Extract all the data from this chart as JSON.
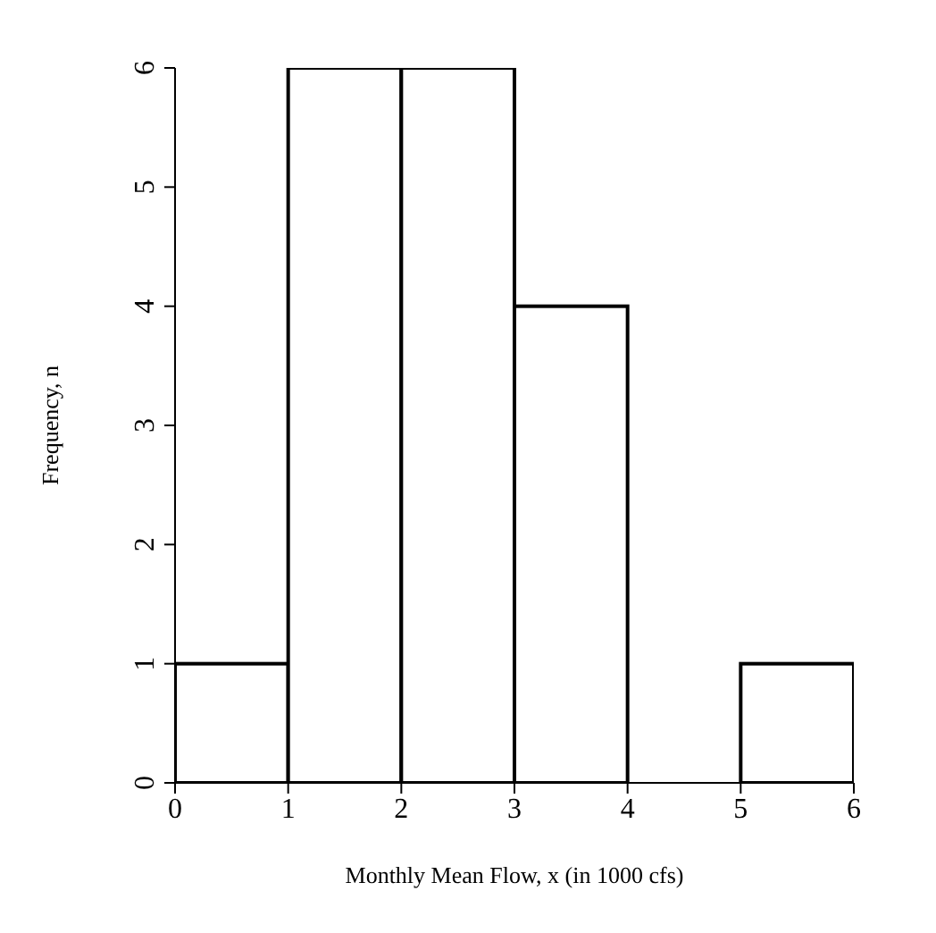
{
  "chart_data": {
    "type": "histogram",
    "xlabel": "Monthly Mean Flow, x (in 1000 cfs)",
    "ylabel": "Frequency, n",
    "bins": [
      0,
      1,
      2,
      3,
      4,
      5,
      6
    ],
    "values": [
      1,
      6,
      6,
      4,
      0,
      1
    ],
    "color": "#ffffff",
    "xlim": [
      0,
      6
    ],
    "xticks": [
      0,
      1,
      2,
      3,
      4,
      5,
      6
    ],
    "ylim": [
      0,
      6
    ],
    "yticks": [
      0,
      1,
      2,
      3,
      4,
      5,
      6
    ],
    "grid": false,
    "legend": false
  }
}
